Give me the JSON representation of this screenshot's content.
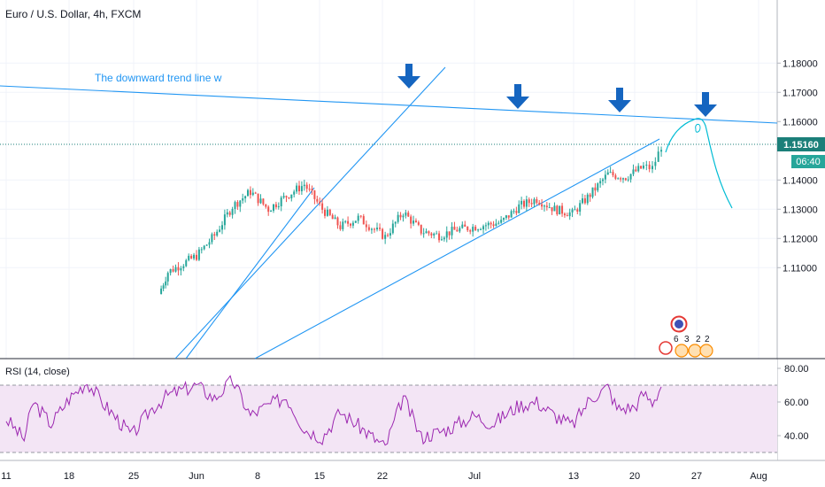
{
  "header": {
    "symbol_title": "Euro / U.S. Dollar, 4h, FXCM"
  },
  "annotation_text": "The downward trend line w",
  "price_axis": {
    "ticks": [
      "1.18000",
      "1.17000",
      "1.16000",
      "1.14000",
      "1.13000",
      "1.12000",
      "1.11000"
    ],
    "current_price": "1.15160",
    "countdown": "06:40",
    "accent_color": "#26a69a"
  },
  "rsi": {
    "label": "RSI (14, close)",
    "ticks": [
      "80.00",
      "60.00",
      "40.00"
    ],
    "line_color": "#9c27b0",
    "band_fill": "#f3e5f5",
    "overbought": 70,
    "oversold": 30
  },
  "time_axis": {
    "labels": [
      "11",
      "18",
      "25",
      "Jun",
      "8",
      "15",
      "22",
      "Jul",
      "13",
      "20",
      "27",
      "Aug"
    ]
  },
  "events": {
    "counts": [
      "6",
      "3",
      "2",
      "2"
    ]
  },
  "chart_data": {
    "type": "candlestick",
    "title": "Euro / U.S. Dollar, 4h, FXCM",
    "ylim": [
      1.1,
      1.185
    ],
    "last_price": 1.1516,
    "candle_up_color": "#26a69a",
    "candle_down_color": "#ef5350",
    "trendline_color": "#2196f3",
    "arrow_color": "#1565c0",
    "x_labels": [
      "11",
      "18",
      "25",
      "Jun",
      "8",
      "15",
      "22",
      "Jul",
      "13",
      "20",
      "27",
      "Aug"
    ],
    "price_series": [
      {
        "x": "May 28",
        "y": 1.101
      },
      {
        "x": "May 29",
        "y": 1.1085
      },
      {
        "x": "Jun 1",
        "y": 1.114
      },
      {
        "x": "Jun 3",
        "y": 1.121
      },
      {
        "x": "Jun 5",
        "y": 1.131
      },
      {
        "x": "Jun 7",
        "y": 1.136
      },
      {
        "x": "Jun 9",
        "y": 1.13
      },
      {
        "x": "Jun 11",
        "y": 1.1345
      },
      {
        "x": "Jun 13",
        "y": 1.1385
      },
      {
        "x": "Jun 15",
        "y": 1.13
      },
      {
        "x": "Jun 17",
        "y": 1.124
      },
      {
        "x": "Jun 19",
        "y": 1.127
      },
      {
        "x": "Jun 22",
        "y": 1.1205
      },
      {
        "x": "Jun 24",
        "y": 1.129
      },
      {
        "x": "Jun 26",
        "y": 1.1225
      },
      {
        "x": "Jun 28",
        "y": 1.121
      },
      {
        "x": "Jun 30",
        "y": 1.123
      },
      {
        "x": "Jul 2",
        "y": 1.1245
      },
      {
        "x": "Jul 4",
        "y": 1.1255
      },
      {
        "x": "Jul 6",
        "y": 1.131
      },
      {
        "x": "Jul 8",
        "y": 1.1335
      },
      {
        "x": "Jul 10",
        "y": 1.13
      },
      {
        "x": "Jul 12",
        "y": 1.1285
      },
      {
        "x": "Jul 14",
        "y": 1.135
      },
      {
        "x": "Jul 16",
        "y": 1.142
      },
      {
        "x": "Jul 18",
        "y": 1.141
      },
      {
        "x": "Jul 20",
        "y": 1.1445
      },
      {
        "x": "Jul 21",
        "y": 1.144
      },
      {
        "x": "Jul 22",
        "y": 1.1516
      }
    ],
    "rsi_series": [
      {
        "x": "May 11",
        "y": 50
      },
      {
        "x": "May 13",
        "y": 38
      },
      {
        "x": "May 14",
        "y": 60
      },
      {
        "x": "May 16",
        "y": 47
      },
      {
        "x": "May 18",
        "y": 62
      },
      {
        "x": "May 20",
        "y": 72
      },
      {
        "x": "May 22",
        "y": 58
      },
      {
        "x": "May 25",
        "y": 40
      },
      {
        "x": "May 27",
        "y": 55
      },
      {
        "x": "May 29",
        "y": 64
      },
      {
        "x": "Jun 1",
        "y": 70
      },
      {
        "x": "Jun 3",
        "y": 62
      },
      {
        "x": "Jun 5",
        "y": 73
      },
      {
        "x": "Jun 7",
        "y": 52
      },
      {
        "x": "Jun 9",
        "y": 58
      },
      {
        "x": "Jun 11",
        "y": 63
      },
      {
        "x": "Jun 13",
        "y": 44
      },
      {
        "x": "Jun 15",
        "y": 39
      },
      {
        "x": "Jun 17",
        "y": 54
      },
      {
        "x": "Jun 19",
        "y": 46
      },
      {
        "x": "Jun 22",
        "y": 33
      },
      {
        "x": "Jun 24",
        "y": 63
      },
      {
        "x": "Jun 26",
        "y": 39
      },
      {
        "x": "Jun 29",
        "y": 44
      },
      {
        "x": "Jul 1",
        "y": 52
      },
      {
        "x": "Jul 3",
        "y": 47
      },
      {
        "x": "Jul 6",
        "y": 58
      },
      {
        "x": "Jul 8",
        "y": 60
      },
      {
        "x": "Jul 10",
        "y": 52
      },
      {
        "x": "Jul 12",
        "y": 46
      },
      {
        "x": "Jul 14",
        "y": 62
      },
      {
        "x": "Jul 16",
        "y": 69
      },
      {
        "x": "Jul 17",
        "y": 56
      },
      {
        "x": "Jul 19",
        "y": 57
      },
      {
        "x": "Jul 20",
        "y": 65
      },
      {
        "x": "Jul 21",
        "y": 60
      },
      {
        "x": "Jul 22",
        "y": 69
      }
    ]
  }
}
